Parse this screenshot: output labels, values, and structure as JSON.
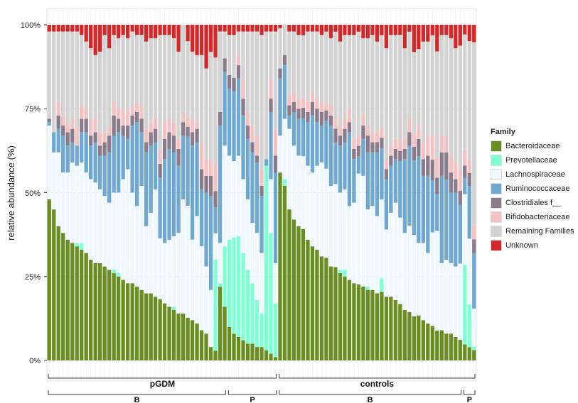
{
  "chart_data": {
    "type": "bar",
    "stacked": true,
    "ylabel": "relative abundance (%)",
    "y_ticks": [
      "0%",
      "25%",
      "50%",
      "75%",
      "100%"
    ],
    "ylim": [
      0,
      100
    ],
    "grid": true,
    "legend": {
      "title": "Family",
      "placement": "right",
      "entries": [
        {
          "name": "Bacteroidaceae",
          "color": "#6b8e23"
        },
        {
          "name": "Prevotellaceae",
          "color": "#7fffd4"
        },
        {
          "name": "Lachnospiraceae",
          "color": "#f0f8ff"
        },
        {
          "name": "Ruminococcaceae",
          "color": "#6fa8d0"
        },
        {
          "name": "Clostridiales f__",
          "color": "#8b7b8b"
        },
        {
          "name": "Bifidobacteriaceae",
          "color": "#f4c2c2"
        },
        {
          "name": "Remaining Families",
          "color": "#d3d3d3"
        },
        {
          "name": "Unknown",
          "color": "#d62728"
        }
      ]
    },
    "groups": [
      {
        "label": "pGDM",
        "subgroups": [
          {
            "label": "B",
            "count": 39
          },
          {
            "label": "P",
            "count": 11
          }
        ]
      },
      {
        "label": "controls",
        "subgroups": [
          {
            "label": "B",
            "count": 40
          },
          {
            "label": "P",
            "count": 3
          }
        ]
      }
    ],
    "series": [
      {
        "name": "Bacteroidaceae",
        "values": [
          48,
          45,
          40,
          38,
          36,
          35,
          34,
          33,
          32,
          30,
          29,
          29,
          28,
          27,
          26,
          25,
          24,
          23,
          23,
          22,
          21,
          20,
          20,
          19,
          18,
          17,
          16,
          15,
          14,
          14,
          13,
          12,
          11,
          9,
          8,
          4,
          3,
          22,
          16,
          10,
          8,
          7,
          6,
          5,
          5,
          4,
          4,
          3,
          2,
          1,
          56,
          52,
          45,
          42,
          40,
          38,
          36,
          34,
          33,
          31,
          30,
          28,
          27,
          26,
          25,
          24,
          23,
          22,
          22,
          21,
          21,
          20,
          20,
          19,
          19,
          18,
          17,
          15,
          14,
          13,
          13,
          12,
          11,
          10,
          9,
          9,
          8,
          8,
          7,
          6,
          5,
          4,
          3
        ]
      },
      {
        "name": "Prevotellaceae",
        "values": [
          0,
          0,
          0,
          0,
          0,
          0,
          1,
          2,
          0,
          0,
          0,
          0,
          0,
          0,
          1,
          1,
          0,
          0,
          0,
          0,
          0,
          0,
          0,
          0,
          0,
          0,
          0,
          1,
          0,
          0,
          0,
          0,
          0,
          0,
          0,
          0,
          28,
          1,
          18,
          26,
          29,
          30,
          26,
          22,
          18,
          14,
          10,
          55,
          36,
          16,
          0,
          2,
          0,
          0,
          0,
          0,
          0,
          0,
          0,
          0,
          0,
          0,
          0,
          1,
          2,
          0,
          0,
          0,
          0,
          1,
          0,
          0,
          4,
          0,
          0,
          0,
          0,
          0,
          0,
          0,
          0,
          0,
          0,
          0,
          0,
          0,
          0,
          0,
          0,
          0,
          25,
          13,
          1
        ]
      },
      {
        "name": "Lachnospiraceae",
        "values": [
          22,
          17,
          22,
          18,
          20,
          24,
          23,
          24,
          24,
          24,
          24,
          22,
          21,
          20,
          23,
          24,
          30,
          34,
          27,
          24,
          31,
          20,
          24,
          32,
          18,
          18,
          20,
          21,
          24,
          34,
          34,
          24,
          32,
          25,
          20,
          17,
          8,
          12,
          30,
          25,
          23,
          24,
          22,
          21,
          18,
          20,
          18,
          0,
          16,
          12,
          11,
          18,
          24,
          22,
          21,
          21,
          22,
          22,
          25,
          28,
          26,
          24,
          24,
          23,
          24,
          22,
          24,
          32,
          33,
          23,
          25,
          23,
          23,
          20,
          25,
          29,
          26,
          23,
          25,
          24,
          21,
          23,
          21,
          27,
          30,
          20,
          22,
          21,
          21,
          22,
          22,
          20,
          11
        ]
      },
      {
        "name": "Ruminococcaceae",
        "values": [
          1,
          6,
          7,
          11,
          8,
          6,
          6,
          9,
          12,
          10,
          12,
          10,
          12,
          15,
          17,
          18,
          13,
          9,
          20,
          25,
          16,
          22,
          20,
          14,
          18,
          25,
          27,
          25,
          20,
          19,
          21,
          28,
          22,
          17,
          22,
          28,
          8,
          35,
          22,
          20,
          21,
          23,
          19,
          18,
          21,
          21,
          17,
          2,
          20,
          27,
          17,
          16,
          4,
          10,
          11,
          11,
          13,
          17,
          13,
          11,
          14,
          18,
          12,
          14,
          14,
          22,
          13,
          5,
          11,
          17,
          16,
          19,
          15,
          15,
          14,
          13,
          17,
          22,
          23,
          22,
          25,
          20,
          23,
          15,
          11,
          26,
          24,
          21,
          22,
          17,
          5,
          16,
          16
        ]
      },
      {
        "name": "Clostridiales f__",
        "values": [
          1,
          0,
          4,
          3,
          4,
          4,
          0,
          4,
          4,
          3,
          3,
          3,
          4,
          5,
          6,
          4,
          3,
          4,
          3,
          3,
          4,
          3,
          4,
          4,
          4,
          6,
          5,
          5,
          5,
          4,
          3,
          4,
          4,
          6,
          5,
          6,
          5,
          4,
          4,
          4,
          4,
          4,
          5,
          4,
          3,
          2,
          3,
          0,
          4,
          5,
          3,
          3,
          3,
          3,
          3,
          3,
          3,
          4,
          4,
          4,
          3,
          3,
          4,
          3,
          4,
          3,
          3,
          3,
          4,
          5,
          3,
          3,
          3,
          3,
          3,
          3,
          3,
          3,
          4,
          4,
          5,
          5,
          6,
          6,
          5,
          7,
          8,
          6,
          4,
          4,
          4,
          4,
          4
        ]
      },
      {
        "name": "Bifidobacteriaceae",
        "values": [
          0,
          0,
          4,
          3,
          3,
          3,
          5,
          4,
          3,
          5,
          4,
          4,
          3,
          3,
          4,
          3,
          5,
          4,
          3,
          3,
          4,
          4,
          3,
          3,
          4,
          5,
          4,
          4,
          3,
          3,
          3,
          4,
          2,
          8,
          5,
          5,
          8,
          0,
          0,
          0,
          0,
          3,
          6,
          4,
          5,
          6,
          5,
          0,
          6,
          8,
          0,
          0,
          3,
          3,
          3,
          3,
          3,
          3,
          3,
          3,
          2,
          3,
          3,
          3,
          3,
          4,
          3,
          3,
          3,
          3,
          3,
          3,
          3,
          3,
          3,
          3,
          3,
          3,
          4,
          4,
          4,
          5,
          6,
          7,
          6,
          5,
          5,
          5,
          5,
          6,
          5,
          4,
          4
        ]
      },
      {
        "name": "Remaining Families",
        "values": [
          26,
          30,
          21,
          25,
          27,
          26,
          29,
          21,
          20,
          21,
          19,
          24,
          29,
          23,
          20,
          21,
          22,
          22,
          22,
          20,
          21,
          26,
          25,
          24,
          34,
          26,
          25,
          25,
          26,
          26,
          23,
          20,
          20,
          26,
          27,
          32,
          33,
          24,
          8,
          12,
          13,
          7,
          14,
          24,
          28,
          31,
          40,
          38,
          14,
          29,
          12,
          9,
          19,
          18,
          19,
          18,
          21,
          18,
          20,
          20,
          21,
          20,
          25,
          25,
          25,
          22,
          31,
          30,
          23,
          26,
          29,
          27,
          27,
          33,
          33,
          31,
          32,
          27,
          25,
          24,
          22,
          30,
          28,
          29,
          32,
          30,
          30,
          35,
          34,
          36,
          36,
          36,
          53
        ]
      },
      {
        "name": "Unknown",
        "values": [
          2,
          2,
          2,
          2,
          2,
          2,
          2,
          3,
          5,
          7,
          9,
          8,
          3,
          7,
          3,
          4,
          3,
          4,
          2,
          3,
          3,
          5,
          4,
          4,
          3,
          3,
          3,
          4,
          8,
          0,
          5,
          8,
          9,
          9,
          13,
          8,
          10,
          2,
          2,
          3,
          3,
          2,
          2,
          2,
          2,
          2,
          3,
          2,
          2,
          2,
          1,
          0,
          2,
          2,
          3,
          3,
          2,
          2,
          2,
          3,
          2,
          4,
          2,
          5,
          3,
          3,
          3,
          2,
          4,
          4,
          3,
          5,
          3,
          7,
          3,
          3,
          3,
          7,
          2,
          8,
          7,
          5,
          5,
          3,
          8,
          3,
          3,
          4,
          7,
          6,
          3,
          5,
          5
        ]
      }
    ]
  }
}
